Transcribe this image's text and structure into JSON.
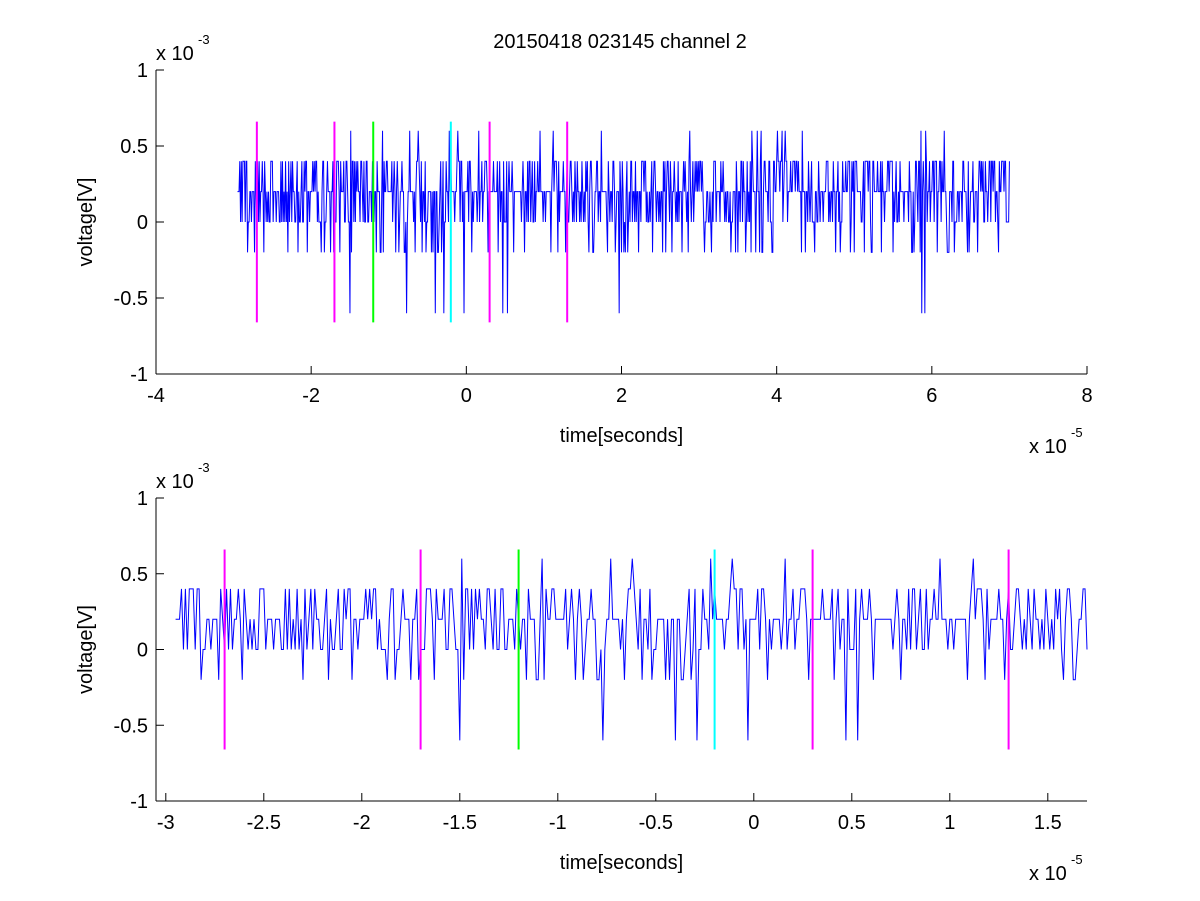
{
  "figure": {
    "title": "20150418 023145 channel 2"
  },
  "chart_data": [
    {
      "type": "line",
      "title": "20150418 023145 channel 2",
      "xlabel": "time[seconds]",
      "ylabel": "voltage[V]",
      "x_exponent_label": "x 10",
      "x_exponent": "-5",
      "y_exponent_label": "x 10",
      "y_exponent": "-3",
      "xlim": [
        -4,
        8
      ],
      "ylim": [
        -1,
        1
      ],
      "xticks": [
        -4,
        -2,
        0,
        2,
        4,
        6,
        8
      ],
      "xtick_labels": [
        "-4",
        "-2",
        "0",
        "2",
        "4",
        "6",
        "8"
      ],
      "yticks": [
        -1,
        -0.5,
        0,
        0.5,
        1
      ],
      "ytick_labels": [
        "-1",
        "-0.5",
        "0",
        "0.5",
        "1"
      ],
      "grid": false,
      "series": [
        {
          "color": "#0000ff",
          "x_range": [
            -2.95,
            7.0
          ],
          "values_quantized_step": 0.2,
          "typical_range": [
            -0.2,
            0.4
          ],
          "peak_max": 0.6,
          "peak_min": -0.6
        }
      ],
      "markers": [
        {
          "x": -2.7,
          "color": "#ff00ff",
          "y_range": [
            -0.66,
            0.66
          ]
        },
        {
          "x": -1.7,
          "color": "#ff00ff",
          "y_range": [
            -0.66,
            0.66
          ]
        },
        {
          "x": -1.2,
          "color": "#00ff00",
          "y_range": [
            -0.66,
            0.66
          ]
        },
        {
          "x": -0.2,
          "color": "#00ffff",
          "y_range": [
            -0.66,
            0.66
          ]
        },
        {
          "x": 0.3,
          "color": "#ff00ff",
          "y_range": [
            -0.66,
            0.66
          ]
        },
        {
          "x": 1.3,
          "color": "#ff00ff",
          "y_range": [
            -0.66,
            0.66
          ]
        }
      ]
    },
    {
      "type": "line",
      "title": "",
      "xlabel": "time[seconds]",
      "ylabel": "voltage[V]",
      "x_exponent_label": "x 10",
      "x_exponent": "-5",
      "y_exponent_label": "x 10",
      "y_exponent": "-3",
      "xlim": [
        -3.05,
        1.7
      ],
      "ylim": [
        -1,
        1
      ],
      "xticks": [
        -3,
        -2.5,
        -2,
        -1.5,
        -1,
        -0.5,
        0,
        0.5,
        1,
        1.5
      ],
      "xtick_labels": [
        "-3",
        "-2.5",
        "-2",
        "-1.5",
        "-1",
        "-0.5",
        "0",
        "0.5",
        "1",
        "1.5"
      ],
      "yticks": [
        -1,
        -0.5,
        0,
        0.5,
        1
      ],
      "ytick_labels": [
        "-1",
        "-0.5",
        "0",
        "0.5",
        "1"
      ],
      "grid": false,
      "series": [
        {
          "color": "#0000ff",
          "x_range": [
            -2.95,
            1.7
          ],
          "values_quantized_step": 0.2,
          "typical_range": [
            -0.2,
            0.4
          ],
          "peak_max": 0.6,
          "peak_min": -0.6
        }
      ],
      "markers": [
        {
          "x": -2.7,
          "color": "#ff00ff",
          "y_range": [
            -0.66,
            0.66
          ]
        },
        {
          "x": -1.7,
          "color": "#ff00ff",
          "y_range": [
            -0.66,
            0.66
          ]
        },
        {
          "x": -1.2,
          "color": "#00ff00",
          "y_range": [
            -0.66,
            0.66
          ]
        },
        {
          "x": -0.2,
          "color": "#00ffff",
          "y_range": [
            -0.66,
            0.66
          ]
        },
        {
          "x": 0.3,
          "color": "#ff00ff",
          "y_range": [
            -0.66,
            0.66
          ]
        },
        {
          "x": 1.3,
          "color": "#ff00ff",
          "y_range": [
            -0.66,
            0.66
          ]
        }
      ]
    }
  ]
}
